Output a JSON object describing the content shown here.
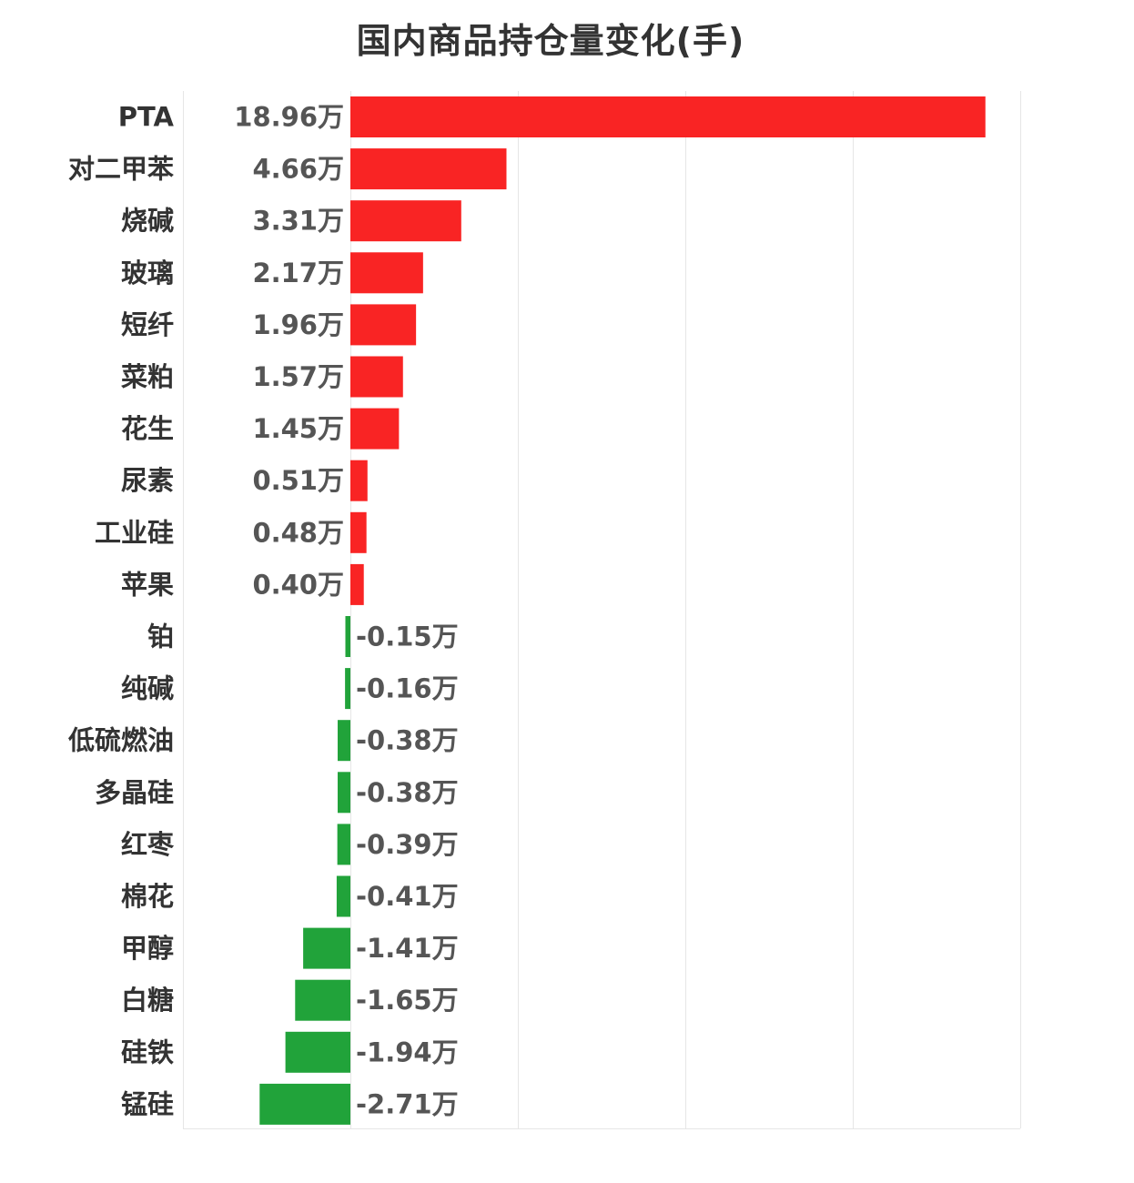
{
  "chart_data": {
    "type": "bar",
    "orientation": "horizontal",
    "title": "国内商品持仓量变化(手)",
    "unit_suffix": "万",
    "categories": [
      "PTA",
      "对二甲苯",
      "烧碱",
      "玻璃",
      "短纤",
      "菜粕",
      "花生",
      "尿素",
      "工业硅",
      "苹果",
      "铂",
      "纯碱",
      "低硫燃油",
      "多晶硅",
      "红枣",
      "棉花",
      "甲醇",
      "白糖",
      "硅铁",
      "锰硅"
    ],
    "values": [
      18.96,
      4.66,
      3.31,
      2.17,
      1.96,
      1.57,
      1.45,
      0.51,
      0.48,
      0.4,
      -0.15,
      -0.16,
      -0.38,
      -0.38,
      -0.39,
      -0.41,
      -1.41,
      -1.65,
      -1.94,
      -2.71
    ],
    "value_labels": [
      "18.96万",
      "4.66万",
      "3.31万",
      "2.17万",
      "1.96万",
      "1.57万",
      "1.45万",
      "0.51万",
      "0.48万",
      "0.40万",
      "-0.15万",
      "-0.16万",
      "-0.38万",
      "-0.38万",
      "-0.39万",
      "-0.41万",
      "-1.41万",
      "-1.65万",
      "-1.94万",
      "-2.71万"
    ],
    "xlim": [
      -5,
      20
    ],
    "gridlines": [
      -5,
      0,
      5,
      10,
      15,
      20
    ],
    "grid": true,
    "legend": "none",
    "colors": {
      "positive": "#f92424",
      "negative": "#21a33a",
      "category_label": "#333333",
      "value_label": "#555555",
      "grid": "#e6e6e6"
    }
  }
}
